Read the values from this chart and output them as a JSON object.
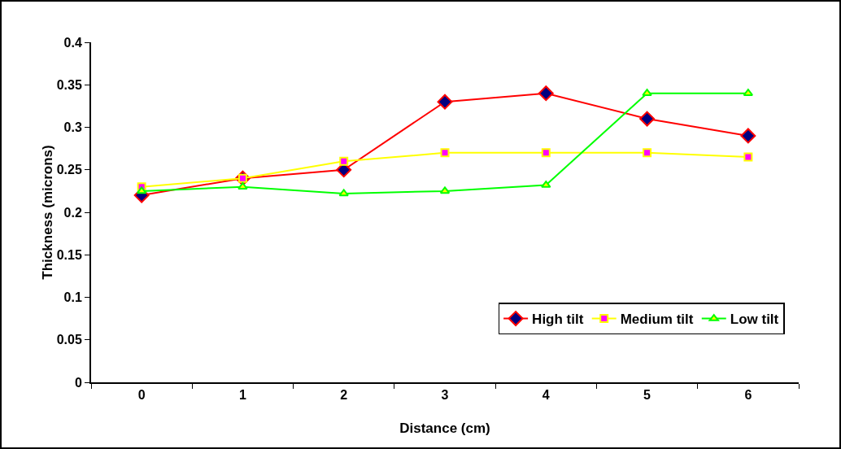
{
  "chart_data": {
    "type": "line",
    "xlabel": "Distance (cm)",
    "ylabel": "Thickness (microns)",
    "categories": [
      "0",
      "1",
      "2",
      "3",
      "4",
      "5",
      "6"
    ],
    "series": [
      {
        "name": "High tilt",
        "color": "#ff0000",
        "marker": "diamond",
        "values": [
          0.22,
          0.24,
          0.25,
          0.33,
          0.34,
          0.31,
          0.29
        ]
      },
      {
        "name": "Medium tilt",
        "color": "#ffff00",
        "marker": "square",
        "values": [
          0.23,
          0.24,
          0.26,
          0.27,
          0.27,
          0.27,
          0.265
        ]
      },
      {
        "name": "Low tilt",
        "color": "#00ff00",
        "marker": "triangle",
        "values": [
          0.225,
          0.23,
          0.222,
          0.225,
          0.232,
          0.34,
          0.34
        ]
      }
    ],
    "ylim": [
      0,
      0.4
    ],
    "yticks": [
      0,
      0.05,
      0.1,
      0.15,
      0.2,
      0.25,
      0.3,
      0.35,
      0.4
    ],
    "grid": false,
    "legend": "bottom right"
  }
}
